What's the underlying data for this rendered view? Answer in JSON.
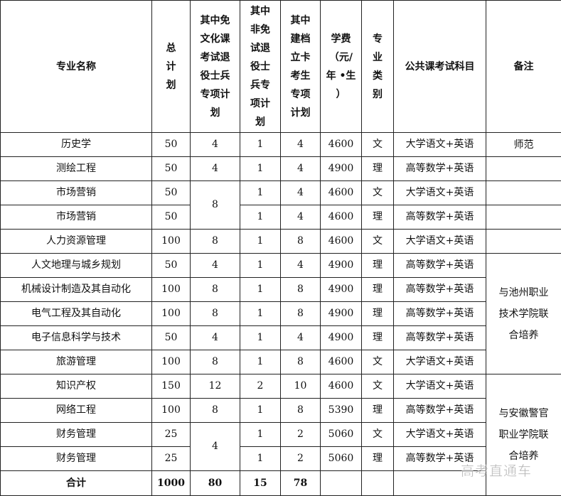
{
  "headers": [
    "专业名称",
    "总\n计\n划",
    "其中免\n文化课\n考试退\n役士兵\n专项计\n划",
    "其中\n非免\n试退\n役士\n兵专\n项计\n划",
    "其中\n建档\n立卡\n考生\n专项\n计划",
    "学费\n（元/\n年 •生\n）",
    "专\n业\n类\n别",
    "公共课考试科目",
    "备注"
  ],
  "rows": [
    [
      "历史学",
      "50",
      "4",
      "1",
      "4",
      "4600",
      "文",
      "大学语文+英语",
      {
        "value": "师范",
        "rowspan": 1
      }
    ],
    [
      "测绘工程",
      "50",
      "4",
      "1",
      "4",
      "4900",
      "理",
      "高等数学+英语",
      {
        "value": "",
        "rowspan": 1
      }
    ],
    [
      "市场营销",
      "50",
      {
        "value": "8",
        "rowspan": 2
      },
      "1",
      "4",
      "4600",
      "文",
      "大学语文+英语",
      {
        "value": "",
        "rowspan": 1
      }
    ],
    [
      "市场营销",
      "50",
      null,
      "1",
      "4",
      "4600",
      "理",
      "高等数学+英语",
      {
        "value": "",
        "rowspan": 1
      }
    ],
    [
      "人力资源管理",
      "100",
      "8",
      "1",
      "8",
      "4600",
      "文",
      "大学语文+英语",
      {
        "value": "",
        "rowspan": 1
      }
    ],
    [
      "人文地理与城乡规划",
      "50",
      "4",
      "1",
      "4",
      "4900",
      "理",
      "高等数学+英语",
      {
        "value": "与池州职业\n技术学院联\n合培养",
        "rowspan": 5
      }
    ],
    [
      "机械设计制造及其自动化",
      "100",
      "8",
      "1",
      "8",
      "4900",
      "理",
      "高等数学+英语",
      null
    ],
    [
      "电气工程及其自动化",
      "100",
      "8",
      "1",
      "8",
      "4900",
      "理",
      "高等数学+英语",
      null
    ],
    [
      "电子信息科学与技术",
      "50",
      "4",
      "1",
      "4",
      "4900",
      "理",
      "高等数学+英语",
      null
    ],
    [
      "旅游管理",
      "100",
      "8",
      "1",
      "8",
      "4600",
      "文",
      "大学语文+英语",
      null
    ],
    [
      "知识产权",
      "150",
      "12",
      "2",
      "10",
      "4600",
      "文",
      "大学语文+英语",
      {
        "value": "与安徽警官\n职业学院联\n合培养",
        "rowspan": 5
      }
    ],
    [
      "网络工程",
      "100",
      "8",
      "1",
      "8",
      "5390",
      "理",
      "高等数学+英语",
      null
    ],
    [
      "财务管理",
      "25",
      {
        "value": "4",
        "rowspan": 2
      },
      "1",
      "2",
      "5060",
      "文",
      "大学语文+英语",
      null
    ],
    [
      "财务管理",
      "25",
      null,
      "1",
      "2",
      "5060",
      "理",
      "高等数学+英语",
      null
    ]
  ],
  "total": [
    "合计",
    "1000",
    "80",
    "15",
    "78",
    "",
    "",
    "",
    null
  ],
  "watermark": "高考直通车"
}
